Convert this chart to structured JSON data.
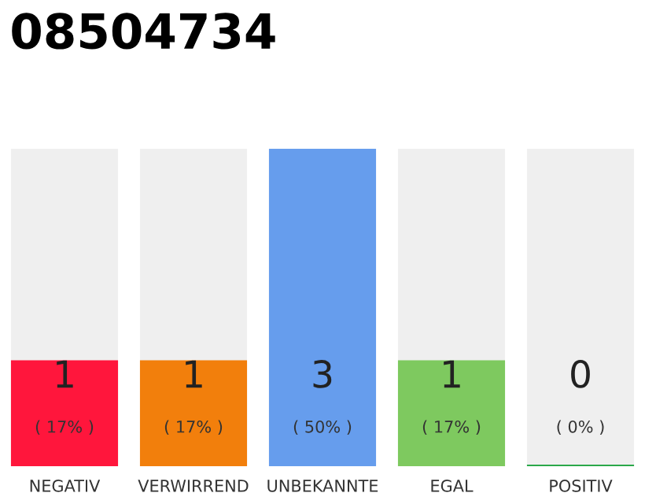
{
  "chart_data": {
    "type": "bar",
    "title": "08504734",
    "categories": [
      "NEGATIV",
      "VERWIRREND",
      "UNBEKANNTE",
      "EGAL",
      "POSITIV"
    ],
    "values": [
      1,
      1,
      3,
      1,
      0
    ],
    "colors": [
      "#ff163c",
      "#f27f0c",
      "#669ded",
      "#7ec95f",
      "#2aa84a"
    ],
    "data_labels": true,
    "annotations": [
      "( 17% )",
      "( 17% )",
      "( 50% )",
      "( 17% )",
      "( 0% )"
    ],
    "grid": false,
    "legend": false
  }
}
